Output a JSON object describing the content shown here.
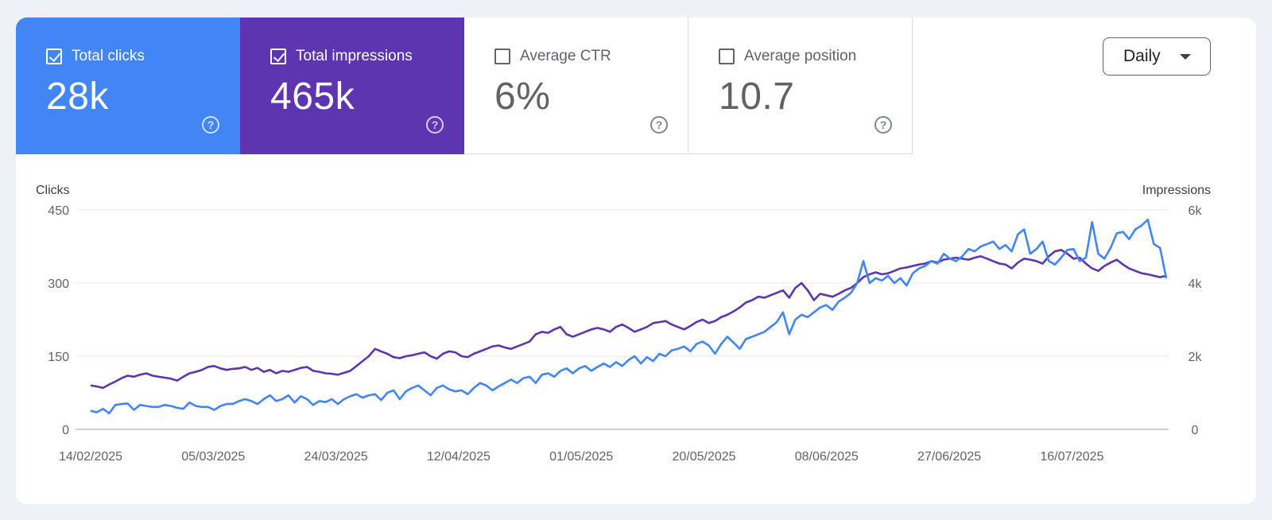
{
  "cards": [
    {
      "label": "Total clicks",
      "value": "28k",
      "checked": true
    },
    {
      "label": "Total impressions",
      "value": "465k",
      "checked": true
    },
    {
      "label": "Average CTR",
      "value": "6%",
      "checked": false
    },
    {
      "label": "Average position",
      "value": "10.7",
      "checked": false
    }
  ],
  "help_glyph": "?",
  "dropdown": {
    "label": "Daily"
  },
  "colors": {
    "clicks": "#4285f4",
    "impressions": "#5e35b1",
    "grid": "#e8eaed",
    "axis": "#5f6368"
  },
  "chart_data": {
    "type": "line",
    "title": "",
    "left_axis": {
      "title": "Clicks",
      "ticks": [
        "450",
        "300",
        "150",
        "0"
      ],
      "ylim": [
        0,
        450
      ]
    },
    "right_axis": {
      "title": "Impressions",
      "ticks": [
        "6k",
        "4k",
        "2k",
        "0"
      ],
      "ylim": [
        0,
        6000
      ]
    },
    "x_ticks": [
      "14/02/2025",
      "05/03/2025",
      "24/03/2025",
      "12/04/2025",
      "01/05/2025",
      "20/05/2025",
      "08/06/2025",
      "27/06/2025",
      "16/07/2025"
    ],
    "x_range": [
      "14/02/2025",
      "03/08/2025"
    ],
    "grid": true,
    "legend": "cards-above",
    "series": [
      {
        "name": "Total clicks",
        "axis": "left",
        "color": "#4285f4",
        "values": [
          38,
          35,
          42,
          33,
          50,
          52,
          53,
          40,
          50,
          48,
          46,
          46,
          50,
          48,
          44,
          42,
          55,
          48,
          46,
          46,
          40,
          48,
          52,
          52,
          58,
          62,
          58,
          52,
          62,
          70,
          58,
          62,
          70,
          55,
          68,
          62,
          50,
          58,
          56,
          62,
          52,
          62,
          68,
          72,
          65,
          70,
          72,
          60,
          75,
          80,
          62,
          78,
          85,
          90,
          80,
          70,
          85,
          90,
          82,
          78,
          80,
          72,
          85,
          95,
          90,
          80,
          88,
          95,
          102,
          95,
          105,
          108,
          95,
          112,
          115,
          108,
          120,
          125,
          115,
          125,
          130,
          120,
          128,
          135,
          128,
          138,
          130,
          142,
          150,
          135,
          148,
          140,
          155,
          150,
          162,
          165,
          170,
          160,
          175,
          180,
          172,
          155,
          175,
          190,
          178,
          165,
          185,
          190,
          195,
          200,
          210,
          220,
          240,
          195,
          225,
          235,
          230,
          240,
          250,
          255,
          245,
          262,
          270,
          280,
          300,
          345,
          300,
          310,
          305,
          315,
          300,
          310,
          295,
          320,
          330,
          335,
          345,
          340,
          360,
          350,
          345,
          355,
          370,
          365,
          375,
          380,
          385,
          370,
          378,
          365,
          400,
          410,
          360,
          370,
          385,
          345,
          338,
          352,
          368,
          370,
          345,
          352,
          425,
          360,
          350,
          372,
          402,
          405,
          390,
          410,
          418,
          430,
          380,
          372,
          310
        ]
      },
      {
        "name": "Total impressions",
        "axis": "left",
        "color": "#5e35b1",
        "values": [
          90,
          88,
          85,
          92,
          98,
          105,
          110,
          108,
          112,
          115,
          110,
          108,
          106,
          104,
          100,
          108,
          115,
          118,
          122,
          128,
          130,
          125,
          122,
          124,
          125,
          128,
          122,
          126,
          118,
          122,
          115,
          120,
          118,
          122,
          126,
          128,
          120,
          118,
          115,
          114,
          112,
          116,
          120,
          130,
          140,
          150,
          165,
          160,
          155,
          148,
          146,
          150,
          152,
          155,
          158,
          150,
          145,
          155,
          160,
          158,
          150,
          148,
          155,
          160,
          165,
          170,
          172,
          168,
          165,
          170,
          175,
          180,
          195,
          200,
          198,
          205,
          210,
          195,
          190,
          195,
          200,
          205,
          208,
          205,
          200,
          210,
          215,
          208,
          200,
          205,
          210,
          218,
          220,
          222,
          215,
          210,
          205,
          212,
          220,
          225,
          218,
          222,
          230,
          235,
          242,
          250,
          260,
          265,
          272,
          270,
          275,
          280,
          285,
          270,
          290,
          300,
          285,
          265,
          278,
          275,
          272,
          278,
          285,
          290,
          300,
          312,
          318,
          322,
          318,
          320,
          325,
          330,
          332,
          335,
          338,
          340,
          345,
          342,
          348,
          350,
          352,
          350,
          348,
          352,
          355,
          350,
          345,
          340,
          338,
          330,
          342,
          350,
          348,
          345,
          340,
          355,
          365,
          368,
          360,
          350,
          352,
          340,
          330,
          325,
          335,
          342,
          348,
          338,
          330,
          325,
          320,
          318,
          315,
          312,
          315
        ]
      }
    ]
  }
}
